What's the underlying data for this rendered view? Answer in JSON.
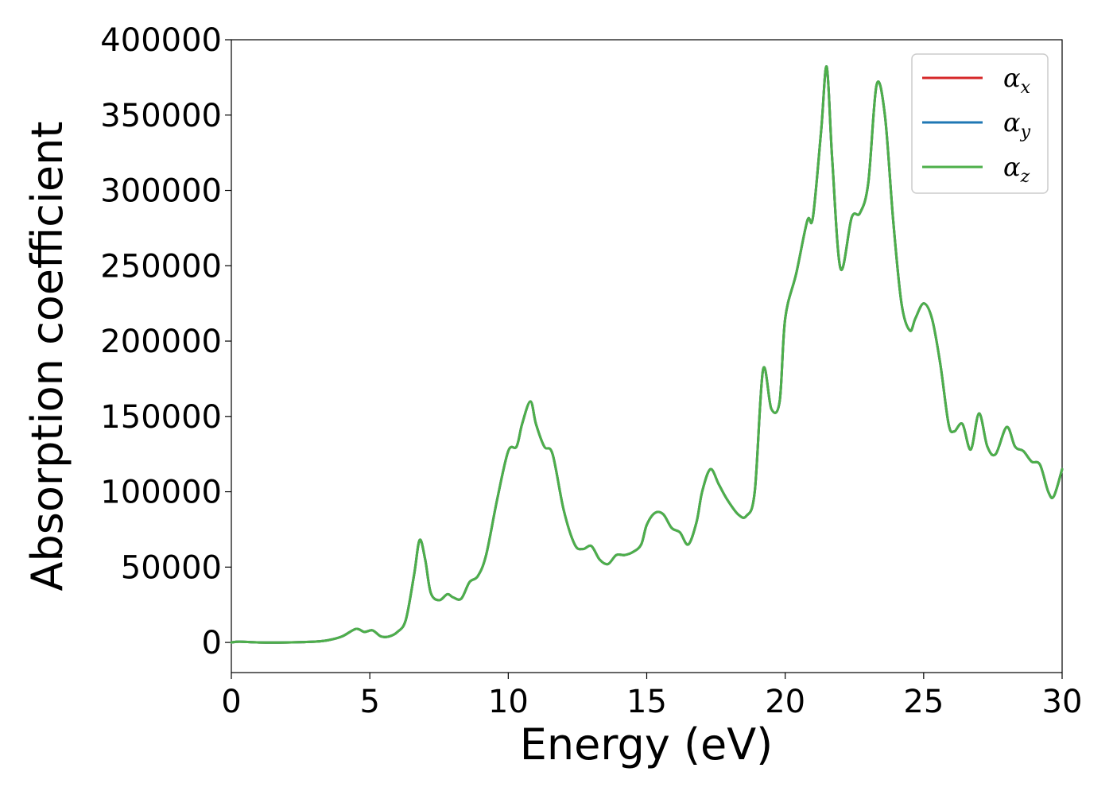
{
  "chart_data": {
    "type": "line",
    "title": "",
    "xlabel": "Energy (eV)",
    "ylabel": "Absorption coefficient",
    "xlim": [
      0,
      30
    ],
    "ylim": [
      -20000,
      400000
    ],
    "xticks": [
      "0",
      "5",
      "10",
      "15",
      "20",
      "25",
      "30"
    ],
    "yticks": [
      "0",
      "50000",
      "100000",
      "150000",
      "200000",
      "250000",
      "300000",
      "350000",
      "400000"
    ],
    "grid": false,
    "legend_position": "top-right",
    "x": [
      0,
      0.3,
      1,
      2,
      3,
      3.5,
      4,
      4.5,
      4.8,
      5.1,
      5.4,
      5.7,
      6,
      6.3,
      6.6,
      6.8,
      7.0,
      7.2,
      7.5,
      7.8,
      8.0,
      8.3,
      8.6,
      8.9,
      9.2,
      9.6,
      10.0,
      10.3,
      10.5,
      10.8,
      11.0,
      11.3,
      11.6,
      12.0,
      12.4,
      12.7,
      13.0,
      13.3,
      13.6,
      13.9,
      14.2,
      14.5,
      14.8,
      15.0,
      15.3,
      15.6,
      15.9,
      16.2,
      16.5,
      16.8,
      17.0,
      17.3,
      17.6,
      17.9,
      18.3,
      18.6,
      18.9,
      19.2,
      19.5,
      19.8,
      20.0,
      20.4,
      20.8,
      21.0,
      21.3,
      21.5,
      21.7,
      22.0,
      22.4,
      22.7,
      23.0,
      23.3,
      23.6,
      23.9,
      24.2,
      24.5,
      24.7,
      25.0,
      25.3,
      25.6,
      25.9,
      26.1,
      26.4,
      26.7,
      27.0,
      27.3,
      27.6,
      28.0,
      28.3,
      28.6,
      28.9,
      29.2,
      29.5,
      29.7,
      30.0
    ],
    "series": [
      {
        "name": "α_x",
        "color": "#d62728",
        "y": [
          0,
          500,
          0,
          0,
          500,
          1500,
          4000,
          9000,
          7000,
          8000,
          4000,
          4000,
          7000,
          15000,
          45000,
          68000,
          55000,
          33000,
          28000,
          32000,
          30000,
          29000,
          40000,
          44000,
          58000,
          95000,
          127000,
          130000,
          145000,
          160000,
          145000,
          130000,
          125000,
          88000,
          65000,
          62000,
          64000,
          55000,
          52000,
          58000,
          58000,
          60000,
          65000,
          78000,
          86000,
          85000,
          76000,
          73000,
          65000,
          80000,
          100000,
          115000,
          105000,
          95000,
          85000,
          84000,
          100000,
          181000,
          155000,
          160000,
          215000,
          245000,
          280000,
          282000,
          340000,
          382000,
          320000,
          248000,
          282000,
          285000,
          305000,
          370000,
          350000,
          280000,
          225000,
          207000,
          215000,
          225000,
          215000,
          185000,
          145000,
          140000,
          145000,
          128000,
          152000,
          130000,
          125000,
          143000,
          130000,
          127000,
          120000,
          118000,
          100000,
          97000,
          115000
        ]
      },
      {
        "name": "α_y",
        "color": "#1f77b4",
        "y": [
          0,
          500,
          0,
          0,
          500,
          1500,
          4000,
          9000,
          7000,
          8000,
          4000,
          4000,
          7000,
          15000,
          45000,
          68000,
          55000,
          33000,
          28000,
          32000,
          30000,
          29000,
          40000,
          44000,
          58000,
          95000,
          127000,
          130000,
          145000,
          160000,
          145000,
          130000,
          125000,
          88000,
          65000,
          62000,
          64000,
          55000,
          52000,
          58000,
          58000,
          60000,
          65000,
          78000,
          86000,
          85000,
          76000,
          73000,
          65000,
          80000,
          100000,
          115000,
          105000,
          95000,
          85000,
          84000,
          100000,
          181000,
          155000,
          160000,
          215000,
          245000,
          280000,
          282000,
          340000,
          382000,
          320000,
          248000,
          282000,
          285000,
          305000,
          370000,
          350000,
          280000,
          225000,
          207000,
          215000,
          225000,
          215000,
          185000,
          145000,
          140000,
          145000,
          128000,
          152000,
          130000,
          125000,
          143000,
          130000,
          127000,
          120000,
          118000,
          100000,
          97000,
          115000
        ]
      },
      {
        "name": "α_z",
        "color": "#4daf4a",
        "y": [
          0,
          500,
          0,
          0,
          500,
          1500,
          4000,
          9000,
          7000,
          8000,
          4000,
          4000,
          7000,
          15000,
          45000,
          68000,
          55000,
          33000,
          28000,
          32000,
          30000,
          29000,
          40000,
          44000,
          58000,
          95000,
          127000,
          130000,
          145000,
          160000,
          145000,
          130000,
          125000,
          88000,
          65000,
          62000,
          64000,
          55000,
          52000,
          58000,
          58000,
          60000,
          65000,
          78000,
          86000,
          85000,
          76000,
          73000,
          65000,
          80000,
          100000,
          115000,
          105000,
          95000,
          85000,
          84000,
          100000,
          181000,
          155000,
          160000,
          215000,
          245000,
          280000,
          282000,
          340000,
          382000,
          320000,
          248000,
          282000,
          285000,
          305000,
          370000,
          350000,
          280000,
          225000,
          207000,
          215000,
          225000,
          215000,
          185000,
          145000,
          140000,
          145000,
          128000,
          152000,
          130000,
          125000,
          143000,
          130000,
          127000,
          120000,
          118000,
          100000,
          97000,
          115000
        ]
      }
    ],
    "legend": [
      {
        "base": "α",
        "sub": "x",
        "color": "#d62728"
      },
      {
        "base": "α",
        "sub": "y",
        "color": "#1f77b4"
      },
      {
        "base": "α",
        "sub": "z",
        "color": "#4daf4a"
      }
    ]
  }
}
